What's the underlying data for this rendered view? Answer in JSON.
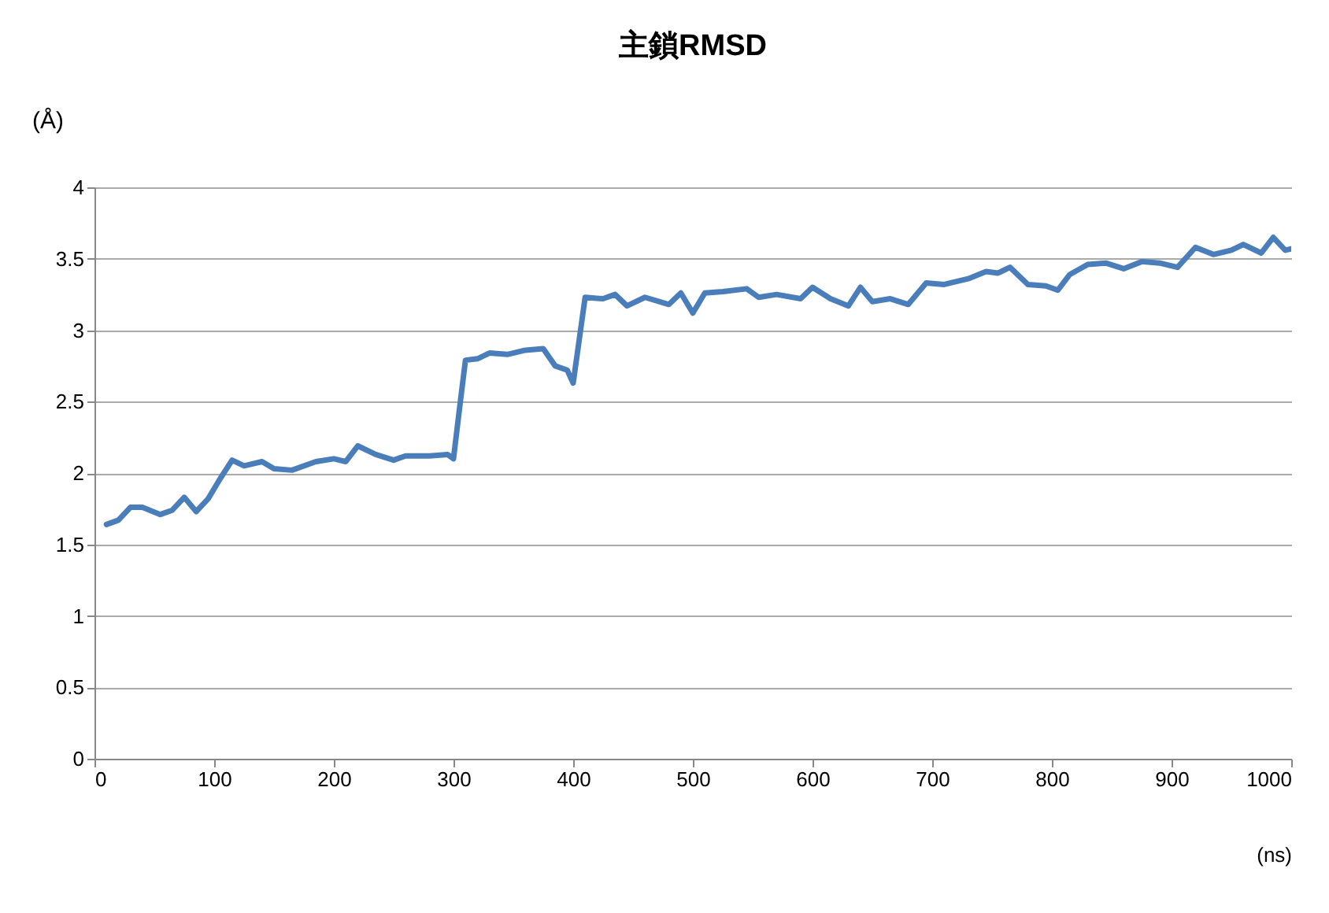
{
  "chart_data": {
    "type": "line",
    "title": "主鎖RMSD",
    "xlabel": "(ns)",
    "ylabel": "(Å)",
    "xlim": [
      0,
      1000
    ],
    "xticks": [
      0,
      100,
      200,
      300,
      400,
      500,
      600,
      700,
      800,
      900,
      1000
    ],
    "ylim": [
      0,
      4
    ],
    "yticks": [
      0,
      0.5,
      1,
      1.5,
      2,
      2.5,
      3,
      3.5,
      4
    ],
    "grid": "y",
    "x": [
      10,
      20,
      30,
      40,
      55,
      65,
      75,
      85,
      95,
      105,
      115,
      125,
      140,
      150,
      165,
      185,
      200,
      210,
      220,
      235,
      250,
      260,
      280,
      295,
      300,
      305,
      310,
      320,
      330,
      345,
      360,
      375,
      385,
      395,
      400,
      410,
      425,
      435,
      445,
      460,
      480,
      490,
      500,
      510,
      525,
      545,
      555,
      570,
      590,
      600,
      615,
      630,
      640,
      650,
      665,
      680,
      695,
      710,
      730,
      745,
      755,
      765,
      780,
      795,
      805,
      815,
      830,
      845,
      860,
      875,
      890,
      905,
      920,
      935,
      950,
      960,
      975,
      985,
      995,
      1000
    ],
    "series": [
      {
        "color": "#4a7ebb",
        "values": [
          1.64,
          1.67,
          1.76,
          1.76,
          1.71,
          1.74,
          1.83,
          1.73,
          1.82,
          1.96,
          2.09,
          2.05,
          2.08,
          2.03,
          2.02,
          2.08,
          2.1,
          2.08,
          2.19,
          2.13,
          2.09,
          2.12,
          2.12,
          2.13,
          2.1,
          2.45,
          2.79,
          2.8,
          2.84,
          2.83,
          2.86,
          2.87,
          2.75,
          2.72,
          2.63,
          3.23,
          3.22,
          3.25,
          3.17,
          3.23,
          3.18,
          3.26,
          3.12,
          3.26,
          3.27,
          3.29,
          3.23,
          3.25,
          3.22,
          3.3,
          3.22,
          3.17,
          3.3,
          3.2,
          3.22,
          3.18,
          3.33,
          3.32,
          3.36,
          3.41,
          3.4,
          3.44,
          3.32,
          3.31,
          3.28,
          3.39,
          3.46,
          3.47,
          3.43,
          3.48,
          3.47,
          3.44,
          3.58,
          3.53,
          3.56,
          3.6,
          3.54,
          3.65,
          3.56,
          3.57
        ]
      }
    ]
  }
}
